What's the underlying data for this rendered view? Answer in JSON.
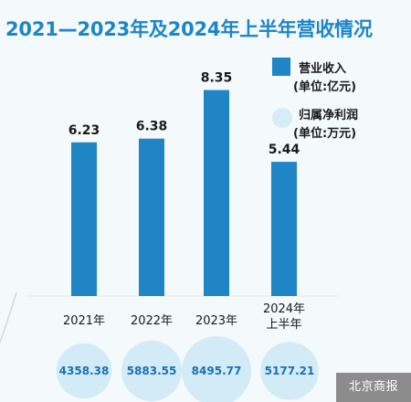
{
  "title": "2021—2023年及2024年上半年营收情况",
  "legend": {
    "revenue_name": "营业收入",
    "revenue_unit": "(单位:亿元)",
    "profit_name": "归属净利润",
    "profit_unit": "(单位:万元)"
  },
  "source_logo": "北京商报",
  "colors": {
    "bar": "#1f85c4",
    "title": "#1d86c8",
    "bubble": "#d2ebf7"
  },
  "chart_data": {
    "type": "bar",
    "categories": [
      "2021年",
      "2022年",
      "2023年",
      "2024年上半年"
    ],
    "category_lines": [
      [
        "2021年"
      ],
      [
        "2022年"
      ],
      [
        "2023年"
      ],
      [
        "2024年",
        "上半年"
      ]
    ],
    "series": [
      {
        "name": "营业收入",
        "unit": "亿元",
        "values": [
          6.23,
          6.38,
          8.35,
          5.44
        ],
        "labels": [
          "6.23",
          "6.38",
          "8.35",
          "5.44"
        ]
      },
      {
        "name": "归属净利润",
        "unit": "万元",
        "values": [
          4358.38,
          5883.55,
          8495.77,
          5177.21
        ],
        "labels": [
          "4358.38",
          "5883.55",
          "8495.77",
          "5177.21"
        ]
      }
    ],
    "ylim": [
      0,
      9.5
    ],
    "grid": false,
    "legend_position": "right"
  }
}
